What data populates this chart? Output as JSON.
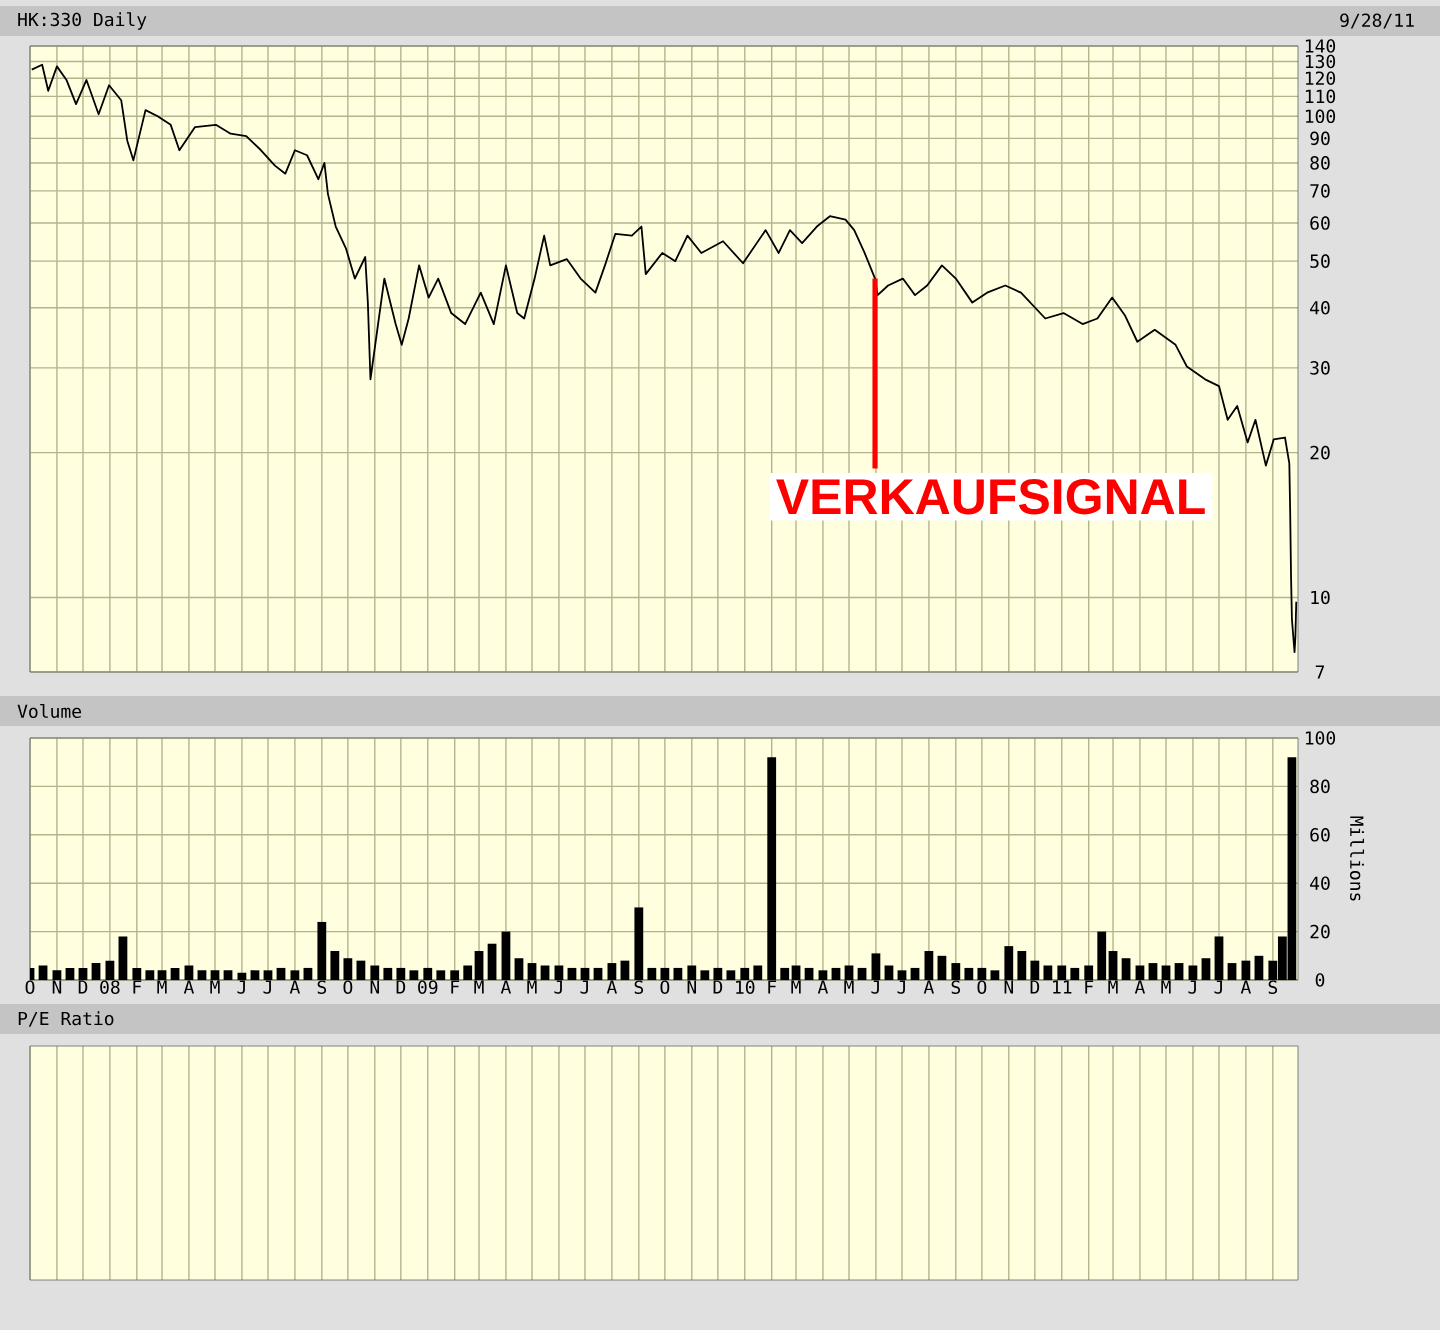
{
  "chart_data": [
    {
      "type": "line",
      "title": "HK:330 Daily",
      "color": "#000000",
      "log": true,
      "grid": true,
      "tick_labels": "y",
      "xlim": [
        "2007-10-01",
        "2011-09-30"
      ],
      "xticks": [
        {
          "value": "2007-10-01",
          "label": null
        },
        {
          "value": "2007-11-01",
          "label": null
        },
        {
          "value": "2007-12-01",
          "label": null
        },
        {
          "value": "2008-01-01",
          "label": null
        },
        {
          "value": "2008-02-01",
          "label": null
        },
        {
          "value": "2008-03-01",
          "label": null
        },
        {
          "value": "2008-04-01",
          "label": null
        },
        {
          "value": "2008-05-01",
          "label": null
        },
        {
          "value": "2008-06-01",
          "label": null
        },
        {
          "value": "2008-07-01",
          "label": null
        },
        {
          "value": "2008-08-01",
          "label": null
        },
        {
          "value": "2008-09-01",
          "label": null
        },
        {
          "value": "2008-10-01",
          "label": null
        },
        {
          "value": "2008-11-01",
          "label": null
        },
        {
          "value": "2008-12-01",
          "label": null
        },
        {
          "value": "2009-01-01",
          "label": null
        },
        {
          "value": "2009-02-01",
          "label": null
        },
        {
          "value": "2009-03-01",
          "label": null
        },
        {
          "value": "2009-04-01",
          "label": null
        },
        {
          "value": "2009-05-01",
          "label": null
        },
        {
          "value": "2009-06-01",
          "label": null
        },
        {
          "value": "2009-07-01",
          "label": null
        },
        {
          "value": "2009-08-01",
          "label": null
        },
        {
          "value": "2009-09-01",
          "label": null
        },
        {
          "value": "2009-10-01",
          "label": null
        },
        {
          "value": "2009-11-01",
          "label": null
        },
        {
          "value": "2009-12-01",
          "label": null
        },
        {
          "value": "2010-01-01",
          "label": null
        },
        {
          "value": "2010-02-01",
          "label": null
        },
        {
          "value": "2010-03-01",
          "label": null
        },
        {
          "value": "2010-04-01",
          "label": null
        },
        {
          "value": "2010-05-01",
          "label": null
        },
        {
          "value": "2010-06-01",
          "label": null
        },
        {
          "value": "2010-07-01",
          "label": null
        },
        {
          "value": "2010-08-01",
          "label": null
        },
        {
          "value": "2010-09-01",
          "label": null
        },
        {
          "value": "2010-10-01",
          "label": null
        },
        {
          "value": "2010-11-01",
          "label": null
        },
        {
          "value": "2010-12-01",
          "label": null
        },
        {
          "value": "2011-01-01",
          "label": null
        },
        {
          "value": "2011-02-01",
          "label": null
        },
        {
          "value": "2011-03-01",
          "label": null
        },
        {
          "value": "2011-04-01",
          "label": null
        },
        {
          "value": "2011-05-01",
          "label": null
        },
        {
          "value": "2011-06-01",
          "label": null
        },
        {
          "value": "2011-07-01",
          "label": null
        },
        {
          "value": "2011-08-01",
          "label": null
        },
        {
          "value": "2011-09-01",
          "label": null
        }
      ],
      "ylim": [
        7,
        140
      ],
      "yticks": [
        7,
        10,
        20,
        30,
        40,
        50,
        60,
        70,
        80,
        90,
        100,
        110,
        120,
        130,
        140
      ],
      "x": [
        "2007-10-03",
        "2007-10-15",
        "2007-10-22",
        "2007-11-01",
        "2007-11-12",
        "2007-11-23",
        "2007-12-05",
        "2007-12-19",
        "2007-12-31",
        "2008-01-14",
        "2008-01-21",
        "2008-01-28",
        "2008-02-11",
        "2008-02-25",
        "2008-03-11",
        "2008-03-21",
        "2008-04-08",
        "2008-05-02",
        "2008-05-19",
        "2008-06-06",
        "2008-06-23",
        "2008-07-09",
        "2008-07-21",
        "2008-08-01",
        "2008-08-15",
        "2008-08-28",
        "2008-09-04",
        "2008-09-08",
        "2008-09-17",
        "2008-09-29",
        "2008-10-09",
        "2008-10-21",
        "2008-10-24",
        "2008-10-27",
        "2008-11-12",
        "2008-11-25",
        "2008-12-02",
        "2008-12-10",
        "2008-12-22",
        "2009-01-02",
        "2009-01-13",
        "2009-01-28",
        "2009-02-13",
        "2009-03-03",
        "2009-03-18",
        "2009-04-01",
        "2009-04-14",
        "2009-04-22",
        "2009-05-04",
        "2009-05-15",
        "2009-05-22",
        "2009-06-10",
        "2009-06-26",
        "2009-07-13",
        "2009-07-24",
        "2009-08-05",
        "2009-08-24",
        "2009-09-04",
        "2009-09-09",
        "2009-09-28",
        "2009-10-13",
        "2009-10-27",
        "2009-11-12",
        "2009-12-07",
        "2009-12-30",
        "2010-01-25",
        "2010-02-09",
        "2010-02-22",
        "2010-03-08",
        "2010-03-25",
        "2010-04-09",
        "2010-04-27",
        "2010-05-07",
        "2010-05-19",
        "2010-05-31",
        "2010-06-03",
        "2010-06-15",
        "2010-07-02",
        "2010-07-16",
        "2010-07-30",
        "2010-08-16",
        "2010-09-01",
        "2010-09-20",
        "2010-10-07",
        "2010-10-28",
        "2010-11-15",
        "2010-12-13",
        "2011-01-03",
        "2011-01-25",
        "2011-02-11",
        "2011-02-28",
        "2011-03-15",
        "2011-03-29",
        "2011-04-18",
        "2011-05-12",
        "2011-05-25",
        "2011-06-15",
        "2011-07-01",
        "2011-07-11",
        "2011-07-22",
        "2011-08-03",
        "2011-08-12",
        "2011-08-24",
        "2011-09-02",
        "2011-09-15",
        "2011-09-20",
        "2011-09-21",
        "2011-09-22",
        "2011-09-23",
        "2011-09-26",
        "2011-09-27",
        "2011-09-28"
      ],
      "values": [
        125,
        128,
        113,
        127,
        119,
        106,
        119,
        101,
        116,
        108,
        89,
        81,
        103,
        100,
        96,
        85,
        95,
        96,
        92,
        91,
        85,
        79,
        76,
        85,
        83,
        74,
        80,
        69,
        59,
        53,
        46,
        51,
        41,
        28.4,
        46,
        37,
        33.5,
        38,
        49,
        42,
        46,
        39,
        37,
        43,
        37,
        49,
        39,
        38,
        46,
        56.5,
        49,
        50.5,
        46,
        43,
        49,
        57,
        56.5,
        59,
        47,
        52,
        50,
        56.5,
        52,
        55,
        49.5,
        58,
        52,
        58,
        54.5,
        59,
        62,
        61,
        58,
        52,
        46,
        42.5,
        44.5,
        46,
        42.5,
        44.5,
        49,
        46,
        41,
        43,
        44.5,
        43,
        38,
        39,
        37,
        38,
        42,
        38.5,
        34,
        36,
        33.5,
        30.2,
        28.4,
        27.5,
        23.4,
        25,
        21,
        23.4,
        18.8,
        21.3,
        21.5,
        19,
        15,
        11,
        9,
        7.7,
        8.3,
        9.8
      ],
      "annotations": [
        "9/28/11",
        {
          "text": "VERKAUFSIGNAL",
          "x": "2010-05-31",
          "y": 46
        }
      ]
    },
    {
      "type": "bar",
      "title": "Volume",
      "ylabel": "Millions",
      "color": "#000000",
      "grid": true,
      "xlim": [
        "2007-10-01",
        "2011-09-30"
      ],
      "xticks": [
        {
          "value": "2007-10-01",
          "label": "O"
        },
        {
          "value": "2007-11-01",
          "label": "N"
        },
        {
          "value": "2007-12-01",
          "label": "D"
        },
        {
          "value": "2008-01-01",
          "label": "08"
        },
        {
          "value": "2008-02-01",
          "label": "F"
        },
        {
          "value": "2008-03-01",
          "label": "M"
        },
        {
          "value": "2008-04-01",
          "label": "A"
        },
        {
          "value": "2008-05-01",
          "label": "M"
        },
        {
          "value": "2008-06-01",
          "label": "J"
        },
        {
          "value": "2008-07-01",
          "label": "J"
        },
        {
          "value": "2008-08-01",
          "label": "A"
        },
        {
          "value": "2008-09-01",
          "label": "S"
        },
        {
          "value": "2008-10-01",
          "label": "O"
        },
        {
          "value": "2008-11-01",
          "label": "N"
        },
        {
          "value": "2008-12-01",
          "label": "D"
        },
        {
          "value": "2009-01-01",
          "label": "09"
        },
        {
          "value": "2009-02-01",
          "label": "F"
        },
        {
          "value": "2009-03-01",
          "label": "M"
        },
        {
          "value": "2009-04-01",
          "label": "A"
        },
        {
          "value": "2009-05-01",
          "label": "M"
        },
        {
          "value": "2009-06-01",
          "label": "J"
        },
        {
          "value": "2009-07-01",
          "label": "J"
        },
        {
          "value": "2009-08-01",
          "label": "A"
        },
        {
          "value": "2009-09-01",
          "label": "S"
        },
        {
          "value": "2009-10-01",
          "label": "O"
        },
        {
          "value": "2009-11-01",
          "label": "N"
        },
        {
          "value": "2009-12-01",
          "label": "D"
        },
        {
          "value": "2010-01-01",
          "label": "10"
        },
        {
          "value": "2010-02-01",
          "label": "F"
        },
        {
          "value": "2010-03-01",
          "label": "M"
        },
        {
          "value": "2010-04-01",
          "label": "A"
        },
        {
          "value": "2010-05-01",
          "label": "M"
        },
        {
          "value": "2010-06-01",
          "label": "J"
        },
        {
          "value": "2010-07-01",
          "label": "J"
        },
        {
          "value": "2010-08-01",
          "label": "A"
        },
        {
          "value": "2010-09-01",
          "label": "S"
        },
        {
          "value": "2010-10-01",
          "label": "O"
        },
        {
          "value": "2010-11-01",
          "label": "N"
        },
        {
          "value": "2010-12-01",
          "label": "D"
        },
        {
          "value": "2011-01-01",
          "label": "11"
        },
        {
          "value": "2011-02-01",
          "label": "F"
        },
        {
          "value": "2011-03-01",
          "label": "M"
        },
        {
          "value": "2011-04-01",
          "label": "A"
        },
        {
          "value": "2011-05-01",
          "label": "M"
        },
        {
          "value": "2011-06-01",
          "label": "J"
        },
        {
          "value": "2011-07-01",
          "label": "J"
        },
        {
          "value": "2011-08-01",
          "label": "A"
        },
        {
          "value": "2011-09-01",
          "label": "S"
        }
      ],
      "ylim": [
        0,
        100
      ],
      "yticks": [
        0,
        20,
        40,
        60,
        80,
        100
      ],
      "x": [
        "2007-10-01",
        "2007-10-16",
        "2007-11-01",
        "2007-11-16",
        "2007-12-01",
        "2007-12-16",
        "2008-01-01",
        "2008-01-16",
        "2008-02-01",
        "2008-02-16",
        "2008-03-01",
        "2008-03-16",
        "2008-04-01",
        "2008-04-16",
        "2008-05-01",
        "2008-05-16",
        "2008-06-01",
        "2008-06-16",
        "2008-07-01",
        "2008-07-16",
        "2008-08-01",
        "2008-08-16",
        "2008-09-01",
        "2008-09-16",
        "2008-10-01",
        "2008-10-16",
        "2008-11-01",
        "2008-11-16",
        "2008-12-01",
        "2008-12-16",
        "2009-01-01",
        "2009-01-16",
        "2009-02-01",
        "2009-02-16",
        "2009-03-01",
        "2009-03-16",
        "2009-04-01",
        "2009-04-16",
        "2009-05-01",
        "2009-05-16",
        "2009-06-01",
        "2009-06-16",
        "2009-07-01",
        "2009-07-16",
        "2009-08-01",
        "2009-08-16",
        "2009-09-01",
        "2009-09-16",
        "2009-10-01",
        "2009-10-16",
        "2009-11-01",
        "2009-11-16",
        "2009-12-01",
        "2009-12-16",
        "2010-01-01",
        "2010-01-16",
        "2010-02-01",
        "2010-02-16",
        "2010-03-01",
        "2010-03-16",
        "2010-04-01",
        "2010-04-16",
        "2010-05-01",
        "2010-05-16",
        "2010-06-01",
        "2010-06-16",
        "2010-07-01",
        "2010-07-16",
        "2010-08-01",
        "2010-08-16",
        "2010-09-01",
        "2010-09-16",
        "2010-10-01",
        "2010-10-16",
        "2010-11-01",
        "2010-11-16",
        "2010-12-01",
        "2010-12-16",
        "2011-01-01",
        "2011-01-16",
        "2011-02-01",
        "2011-02-16",
        "2011-03-01",
        "2011-03-16",
        "2011-04-01",
        "2011-04-16",
        "2011-05-01",
        "2011-05-16",
        "2011-06-01",
        "2011-06-16",
        "2011-07-01",
        "2011-07-16",
        "2011-08-01",
        "2011-08-16",
        "2011-09-01",
        "2011-09-12",
        "2011-09-23"
      ],
      "values": [
        5,
        6,
        4,
        5,
        5,
        7,
        8,
        18,
        5,
        4,
        4,
        5,
        6,
        4,
        4,
        4,
        3,
        4,
        4,
        5,
        4,
        5,
        24,
        12,
        9,
        8,
        6,
        5,
        5,
        4,
        5,
        4,
        4,
        6,
        12,
        15,
        20,
        9,
        7,
        6,
        6,
        5,
        5,
        5,
        7,
        8,
        30,
        5,
        5,
        5,
        6,
        4,
        5,
        4,
        5,
        6,
        92,
        5,
        6,
        5,
        4,
        5,
        6,
        5,
        11,
        6,
        4,
        5,
        12,
        10,
        7,
        5,
        5,
        4,
        14,
        12,
        8,
        6,
        6,
        5,
        6,
        20,
        12,
        9,
        6,
        7,
        6,
        7,
        6,
        9,
        18,
        7,
        8,
        10,
        8,
        18,
        92
      ]
    },
    {
      "type": "other",
      "title": "P/E Ratio"
    }
  ]
}
